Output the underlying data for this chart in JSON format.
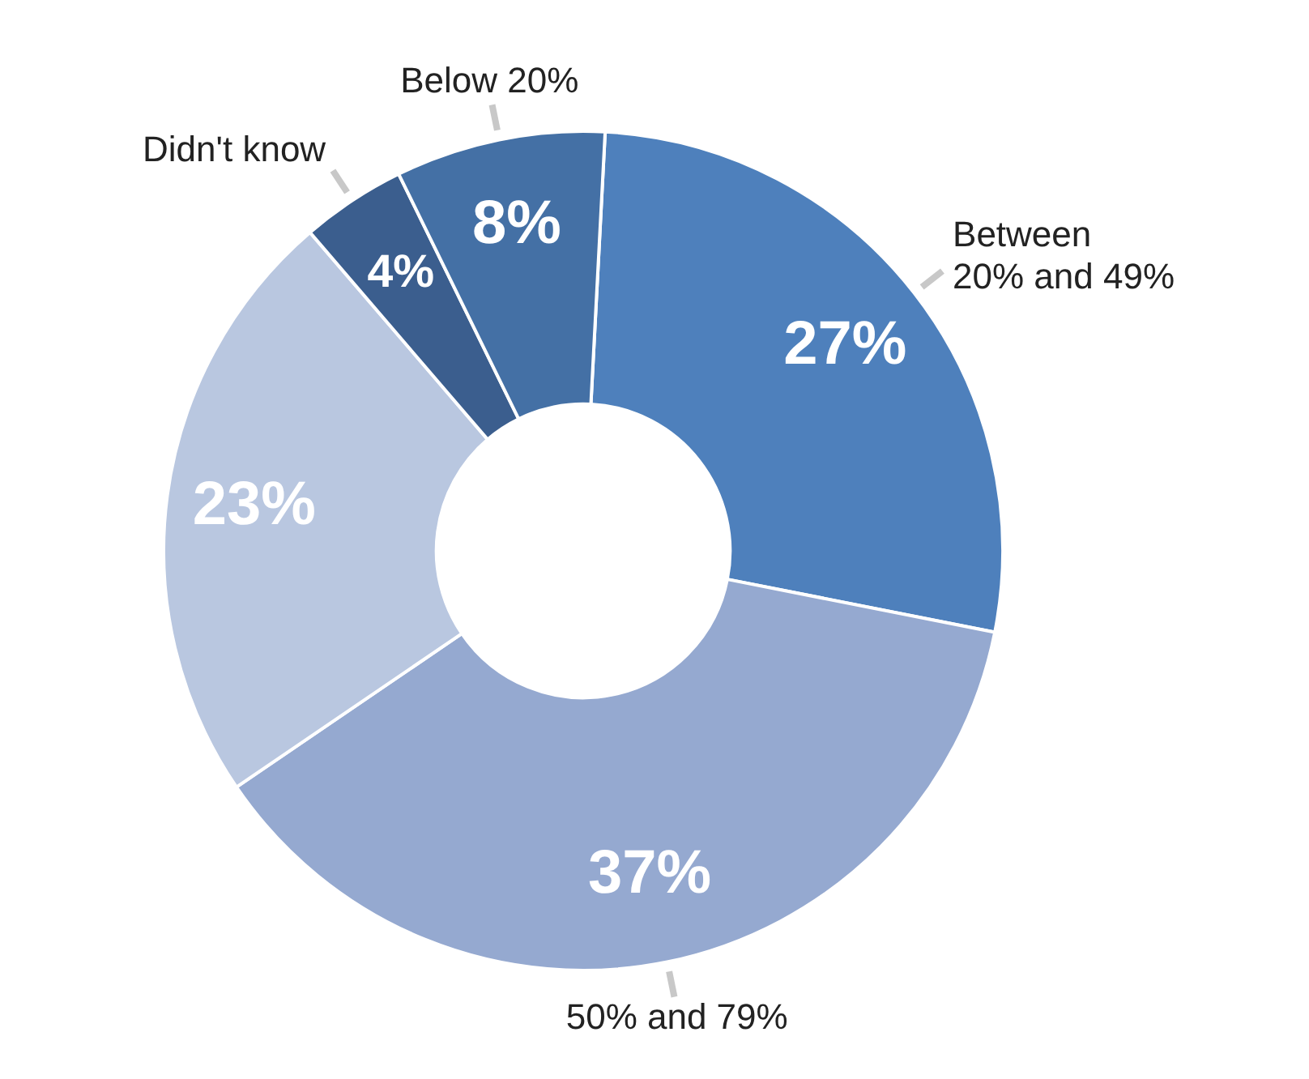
{
  "chart_data": {
    "type": "donut",
    "categories": [
      "Between 20% and 49%",
      "50% and 79%",
      null,
      "Didn't know",
      "Below 20%"
    ],
    "values": [
      27,
      37,
      23,
      4,
      8
    ],
    "colors": [
      "#4e80bc",
      "#95a9d0",
      "#b9c7e0",
      "#3b5e8e",
      "#4470a5"
    ],
    "value_labels": [
      "27%",
      "37%",
      "23%",
      "4%",
      "8%"
    ],
    "legend": false
  }
}
